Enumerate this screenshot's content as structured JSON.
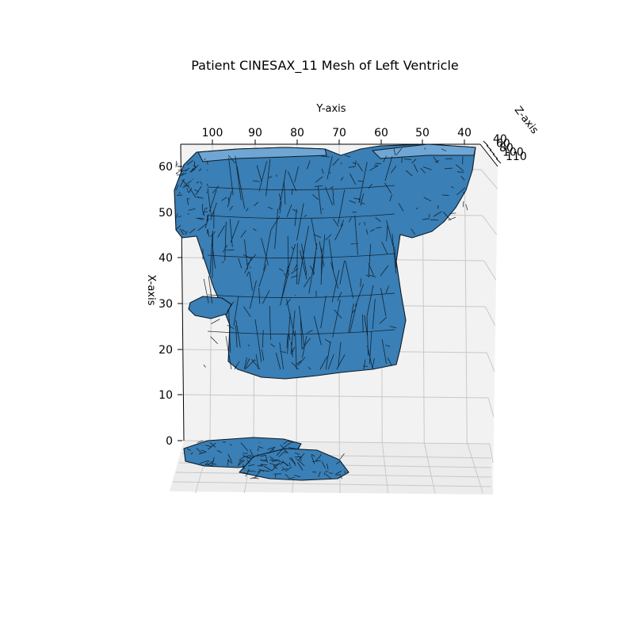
{
  "chart_data": {
    "type": "mesh3d",
    "title": "Patient CINESAX_11 Mesh of Left Ventricle",
    "xlabel": "X-axis",
    "ylabel": "Y-axis",
    "zlabel": "Z-axis",
    "x_ticks": [
      "0",
      "10",
      "20",
      "30",
      "40",
      "50",
      "60"
    ],
    "y_ticks": [
      "100",
      "90",
      "80",
      "70",
      "60",
      "50",
      "40"
    ],
    "z_ticks": [
      "40",
      "60",
      "80",
      "100",
      "110"
    ],
    "grid": true,
    "mesh_color": "#3a7fb5",
    "edge_color": "#0d1a26"
  }
}
